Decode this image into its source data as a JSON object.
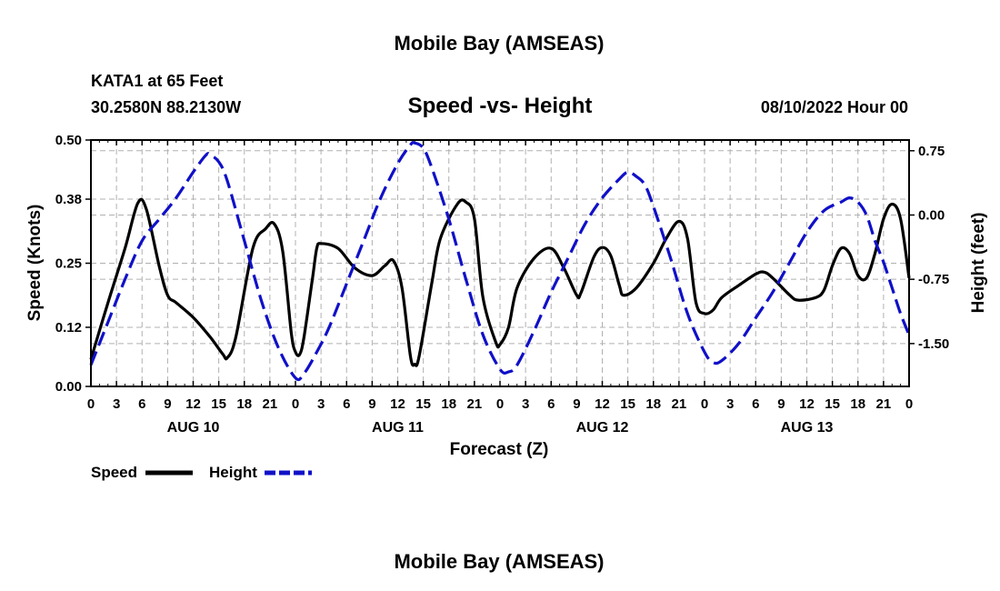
{
  "header": {
    "main_title": "Mobile Bay (AMSEAS)",
    "station": "KATA1 at 65 Feet",
    "position": "30.2580N  88.2130W",
    "chart_title": "Speed -vs- Height",
    "timestamp": "08/10/2022 Hour 00"
  },
  "footer": {
    "next_title": "Mobile Bay (AMSEAS)"
  },
  "legend": {
    "speed_label": "Speed",
    "height_label": "Height"
  },
  "colors": {
    "speed": "#000000",
    "height": "#1010c8",
    "grid": "#b0b0b0"
  },
  "chart_data": {
    "type": "line",
    "xlabel": "Forecast (Z)",
    "ylabel_left": "Speed (Knots)",
    "ylabel_right": "Height (feet)",
    "x_unit": "hours from 08/10/2022 00Z",
    "xlim": [
      0,
      96
    ],
    "ylim_left": [
      0,
      0.5
    ],
    "ylim_right": [
      -2.0,
      0.875
    ],
    "x_tick_labels": [
      "0",
      "3",
      "6",
      "9",
      "12",
      "15",
      "18",
      "21",
      "0",
      "3",
      "6",
      "9",
      "12",
      "15",
      "18",
      "21",
      "0",
      "3",
      "6",
      "9",
      "12",
      "15",
      "18",
      "21",
      "0",
      "3",
      "6",
      "9",
      "12",
      "15",
      "18",
      "21",
      "0"
    ],
    "y_ticks_left": [
      "0.00",
      "0.12",
      "0.25",
      "0.38",
      "0.50"
    ],
    "y_ticks_right": [
      "-1.50",
      "-0.75",
      "0.00",
      "0.75"
    ],
    "day_labels": [
      "AUG 10",
      "AUG 11",
      "AUG 12",
      "AUG 13"
    ],
    "grid": true,
    "legend_position": "bottom-left",
    "series": [
      {
        "name": "Speed",
        "axis": "left",
        "style": "solid",
        "points": [
          [
            0,
            0.055
          ],
          [
            2,
            0.17
          ],
          [
            4,
            0.28
          ],
          [
            5.5,
            0.372
          ],
          [
            6.5,
            0.36
          ],
          [
            8,
            0.245
          ],
          [
            9,
            0.185
          ],
          [
            10,
            0.17
          ],
          [
            12,
            0.14
          ],
          [
            14,
            0.1
          ],
          [
            15.5,
            0.065
          ],
          [
            16,
            0.058
          ],
          [
            17,
            0.1
          ],
          [
            19,
            0.28
          ],
          [
            20.5,
            0.32
          ],
          [
            21.5,
            0.33
          ],
          [
            22.5,
            0.275
          ],
          [
            23.5,
            0.11
          ],
          [
            24,
            0.07
          ],
          [
            24.5,
            0.065
          ],
          [
            25,
            0.1
          ],
          [
            26,
            0.22
          ],
          [
            26.5,
            0.28
          ],
          [
            27,
            0.29
          ],
          [
            29,
            0.28
          ],
          [
            31,
            0.24
          ],
          [
            33,
            0.225
          ],
          [
            34.5,
            0.245
          ],
          [
            35.5,
            0.255
          ],
          [
            36.5,
            0.2
          ],
          [
            37.5,
            0.06
          ],
          [
            38,
            0.045
          ],
          [
            38.5,
            0.06
          ],
          [
            40,
            0.21
          ],
          [
            41,
            0.3
          ],
          [
            43,
            0.37
          ],
          [
            44,
            0.374
          ],
          [
            45,
            0.34
          ],
          [
            46,
            0.18
          ],
          [
            47.5,
            0.09
          ],
          [
            48,
            0.085
          ],
          [
            49,
            0.12
          ],
          [
            50,
            0.2
          ],
          [
            52,
            0.26
          ],
          [
            54,
            0.28
          ],
          [
            55.5,
            0.24
          ],
          [
            57,
            0.185
          ],
          [
            57.5,
            0.19
          ],
          [
            59,
            0.262
          ],
          [
            60,
            0.282
          ],
          [
            61,
            0.265
          ],
          [
            62,
            0.205
          ],
          [
            62.5,
            0.185
          ],
          [
            64,
            0.2
          ],
          [
            66,
            0.25
          ],
          [
            67.5,
            0.3
          ],
          [
            69,
            0.335
          ],
          [
            70,
            0.3
          ],
          [
            71,
            0.17
          ],
          [
            72,
            0.148
          ],
          [
            73,
            0.155
          ],
          [
            74,
            0.18
          ],
          [
            76,
            0.205
          ],
          [
            78,
            0.228
          ],
          [
            79,
            0.232
          ],
          [
            80,
            0.22
          ],
          [
            82,
            0.185
          ],
          [
            83,
            0.175
          ],
          [
            85,
            0.18
          ],
          [
            86,
            0.195
          ],
          [
            87,
            0.245
          ],
          [
            88,
            0.28
          ],
          [
            89,
            0.27
          ],
          [
            90,
            0.225
          ],
          [
            91,
            0.22
          ],
          [
            92,
            0.27
          ],
          [
            93,
            0.34
          ],
          [
            94,
            0.37
          ],
          [
            95,
            0.34
          ],
          [
            96,
            0.22
          ]
        ]
      },
      {
        "name": "Height",
        "axis": "right",
        "style": "dashed",
        "points": [
          [
            0,
            -1.75
          ],
          [
            2,
            -1.25
          ],
          [
            4,
            -0.75
          ],
          [
            6,
            -0.3
          ],
          [
            8,
            -0.05
          ],
          [
            10,
            0.2
          ],
          [
            12,
            0.5
          ],
          [
            13.5,
            0.7
          ],
          [
            14,
            0.7
          ],
          [
            15,
            0.62
          ],
          [
            16,
            0.4
          ],
          [
            18,
            -0.3
          ],
          [
            20,
            -1.0
          ],
          [
            22,
            -1.55
          ],
          [
            24,
            -1.9
          ],
          [
            25,
            -1.85
          ],
          [
            26.5,
            -1.6
          ],
          [
            28,
            -1.3
          ],
          [
            30,
            -0.8
          ],
          [
            32,
            -0.3
          ],
          [
            34,
            0.2
          ],
          [
            36,
            0.6
          ],
          [
            37.5,
            0.82
          ],
          [
            38,
            0.84
          ],
          [
            39,
            0.78
          ],
          [
            40,
            0.55
          ],
          [
            42,
            -0.05
          ],
          [
            44,
            -0.75
          ],
          [
            46,
            -1.4
          ],
          [
            48,
            -1.8
          ],
          [
            49,
            -1.83
          ],
          [
            50,
            -1.75
          ],
          [
            52,
            -1.35
          ],
          [
            54,
            -0.9
          ],
          [
            56,
            -0.5
          ],
          [
            58,
            -0.1
          ],
          [
            60,
            0.2
          ],
          [
            62,
            0.42
          ],
          [
            63,
            0.5
          ],
          [
            64,
            0.45
          ],
          [
            65,
            0.35
          ],
          [
            66,
            0.1
          ],
          [
            68,
            -0.5
          ],
          [
            70,
            -1.15
          ],
          [
            72,
            -1.6
          ],
          [
            73,
            -1.72
          ],
          [
            74,
            -1.7
          ],
          [
            76,
            -1.5
          ],
          [
            78,
            -1.2
          ],
          [
            80,
            -0.9
          ],
          [
            82,
            -0.55
          ],
          [
            84,
            -0.2
          ],
          [
            86,
            0.05
          ],
          [
            88,
            0.15
          ],
          [
            89,
            0.2
          ],
          [
            90,
            0.15
          ],
          [
            91,
            0.0
          ],
          [
            92,
            -0.3
          ],
          [
            93,
            -0.55
          ],
          [
            94,
            -0.85
          ],
          [
            95,
            -1.15
          ],
          [
            96,
            -1.4
          ]
        ]
      }
    ]
  }
}
